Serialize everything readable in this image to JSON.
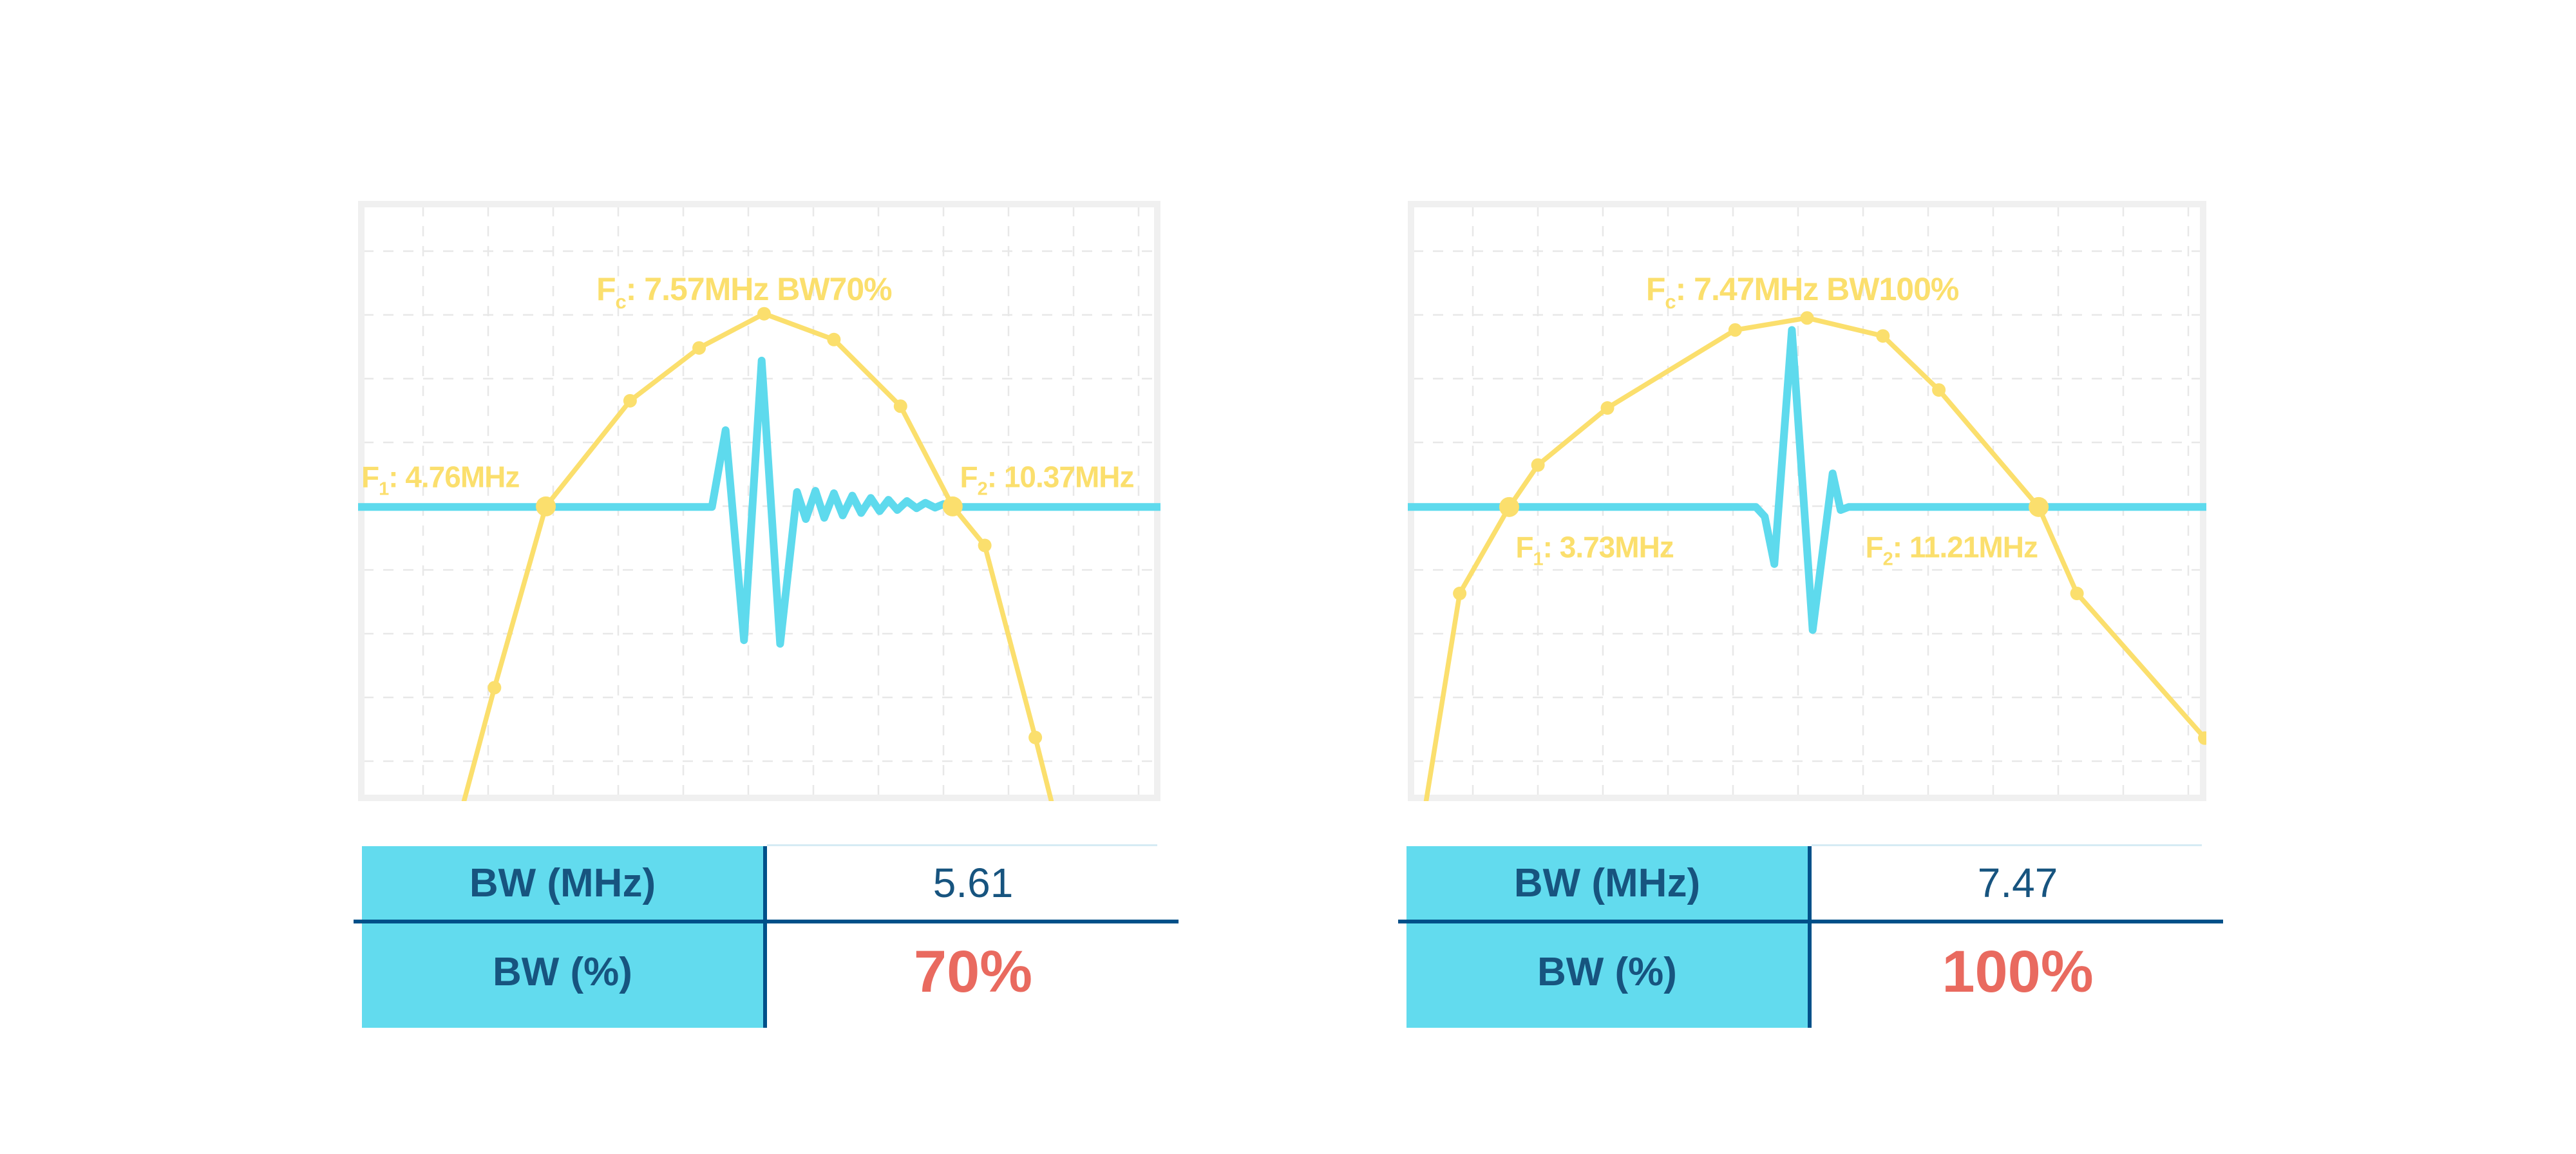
{
  "colors": {
    "background": "#ffffff",
    "yellow": "#fbdf6d",
    "cyan": "#5edaed",
    "table_fill": "#62dbee",
    "navy_text": "#17547f",
    "navy_line": "#005089",
    "red": "#e96a5f",
    "plot_border": "#f0f0f0",
    "grid": "#e8e8e8",
    "table_topline": "#d6ebf4"
  },
  "charts": [
    {
      "id": "bw70",
      "labels": {
        "title": {
          "pre": "F",
          "sub": "c",
          "post": ": 7.57MHz BW70%",
          "nx": 0.481,
          "ny": 0.165,
          "anchor": "middle",
          "fs": 50
        },
        "f1": {
          "pre": "F",
          "sub": "1",
          "post": ": 4.76MHz",
          "nx": 0.201,
          "ny": 0.477,
          "anchor": "end",
          "fs": 46
        },
        "f2": {
          "pre": "F",
          "sub": "2",
          "post": ": 10.37MHz",
          "nx": 0.75,
          "ny": 0.477,
          "anchor": "start",
          "fs": 46
        }
      },
      "table": {
        "rows": [
          {
            "label": "BW (MHz)",
            "value": "5.61"
          },
          {
            "label": "BW (%)",
            "value": "70%"
          }
        ]
      }
    },
    {
      "id": "bw100",
      "labels": {
        "title": {
          "pre": "F",
          "sub": "c",
          "post": ": 7.47MHz BW100%",
          "nx": 0.494,
          "ny": 0.165,
          "anchor": "middle",
          "fs": 50
        },
        "f1": {
          "pre": "F",
          "sub": "1",
          "post": ": 3.73MHz",
          "nx": 0.135,
          "ny": 0.594,
          "anchor": "start",
          "fs": 46
        },
        "f2": {
          "pre": "F",
          "sub": "2",
          "post": ": 11.21MHz",
          "nx": 0.573,
          "ny": 0.594,
          "anchor": "start",
          "fs": 46
        }
      },
      "table": {
        "rows": [
          {
            "label": "BW (MHz)",
            "value": "7.47"
          },
          {
            "label": "BW (%)",
            "value": "100%"
          }
        ]
      }
    }
  ],
  "chart_data": [
    {
      "type": "line",
      "title": "Fc: 7.57MHz BW70%",
      "xlabel": "",
      "ylabel": "",
      "x_unit": "MHz",
      "grid": true,
      "legend": "none",
      "annotations": {
        "fc_mhz": 7.57,
        "f1_mhz": 4.76,
        "f2_mhz": 10.37,
        "bw_mhz": 5.61,
        "bw_pct": 70
      },
      "baseline_norm": 0.51,
      "series": [
        {
          "name": "frequency-spectrum",
          "color": "yellow",
          "x_mhz": [
            3.7,
            4.1,
            4.76,
            5.84,
            6.74,
            7.57,
            8.62,
            9.6,
            10.37,
            10.84,
            11.6,
            11.83
          ],
          "points_norm": [
            [
              0.132,
              1.0
            ],
            [
              0.17,
              0.811
            ],
            [
              0.234,
              0.509
            ],
            [
              0.339,
              0.333
            ],
            [
              0.425,
              0.245
            ],
            [
              0.506,
              0.188
            ],
            [
              0.593,
              0.231
            ],
            [
              0.676,
              0.342
            ],
            [
              0.741,
              0.509
            ],
            [
              0.781,
              0.574
            ],
            [
              0.844,
              0.894
            ],
            [
              0.864,
              1.0
            ]
          ],
          "marker_big": [
            2,
            8
          ],
          "marker_small": [
            1,
            3,
            4,
            5,
            6,
            7,
            9,
            10
          ]
        },
        {
          "name": "pulse-echo-waveform",
          "color": "cyan",
          "points_norm": [
            [
              0.0,
              0.51
            ],
            [
              0.441,
              0.51
            ],
            [
              0.458,
              0.382
            ],
            [
              0.481,
              0.732
            ],
            [
              0.503,
              0.266
            ],
            [
              0.526,
              0.738
            ],
            [
              0.547,
              0.485
            ],
            [
              0.558,
              0.53
            ],
            [
              0.57,
              0.483
            ],
            [
              0.581,
              0.528
            ],
            [
              0.593,
              0.487
            ],
            [
              0.604,
              0.524
            ],
            [
              0.616,
              0.491
            ],
            [
              0.627,
              0.52
            ],
            [
              0.639,
              0.495
            ],
            [
              0.65,
              0.517
            ],
            [
              0.661,
              0.498
            ],
            [
              0.672,
              0.515
            ],
            [
              0.684,
              0.5
            ],
            [
              0.696,
              0.512
            ],
            [
              0.707,
              0.503
            ],
            [
              0.719,
              0.511
            ],
            [
              0.73,
              0.505
            ],
            [
              0.741,
              0.51
            ],
            [
              1.0,
              0.51
            ]
          ]
        }
      ]
    },
    {
      "type": "line",
      "title": "Fc: 7.47MHz BW100%",
      "xlabel": "",
      "ylabel": "",
      "x_unit": "MHz",
      "grid": true,
      "legend": "none",
      "annotations": {
        "fc_mhz": 7.47,
        "f1_mhz": 3.73,
        "f2_mhz": 11.21,
        "bw_mhz": 7.47,
        "bw_pct": 100
      },
      "baseline_norm": 0.51,
      "series": [
        {
          "name": "frequency-spectrum",
          "color": "yellow",
          "x_mhz": [
            2.52,
            2.99,
            3.73,
            4.12,
            5.09,
            6.91,
            7.47,
            9.0,
            9.8,
            11.21,
            11.72,
            13.55
          ],
          "points_norm": [
            [
              0.023,
              1.0
            ],
            [
              0.065,
              0.654
            ],
            [
              0.127,
              0.51
            ],
            [
              0.163,
              0.44
            ],
            [
              0.25,
              0.345
            ],
            [
              0.41,
              0.215
            ],
            [
              0.5,
              0.195
            ],
            [
              0.595,
              0.225
            ],
            [
              0.665,
              0.315
            ],
            [
              0.79,
              0.51
            ],
            [
              0.838,
              0.654
            ],
            [
              0.998,
              0.895
            ]
          ],
          "marker_big": [
            2,
            9
          ],
          "marker_small": [
            1,
            3,
            4,
            5,
            6,
            7,
            8,
            10,
            11
          ]
        },
        {
          "name": "pulse-echo-waveform",
          "color": "cyan",
          "points_norm": [
            [
              0.0,
              0.51
            ],
            [
              0.436,
              0.51
            ],
            [
              0.447,
              0.526
            ],
            [
              0.459,
              0.605
            ],
            [
              0.481,
              0.215
            ],
            [
              0.507,
              0.715
            ],
            [
              0.532,
              0.454
            ],
            [
              0.542,
              0.515
            ],
            [
              0.552,
              0.51
            ],
            [
              1.0,
              0.51
            ]
          ]
        }
      ]
    }
  ]
}
